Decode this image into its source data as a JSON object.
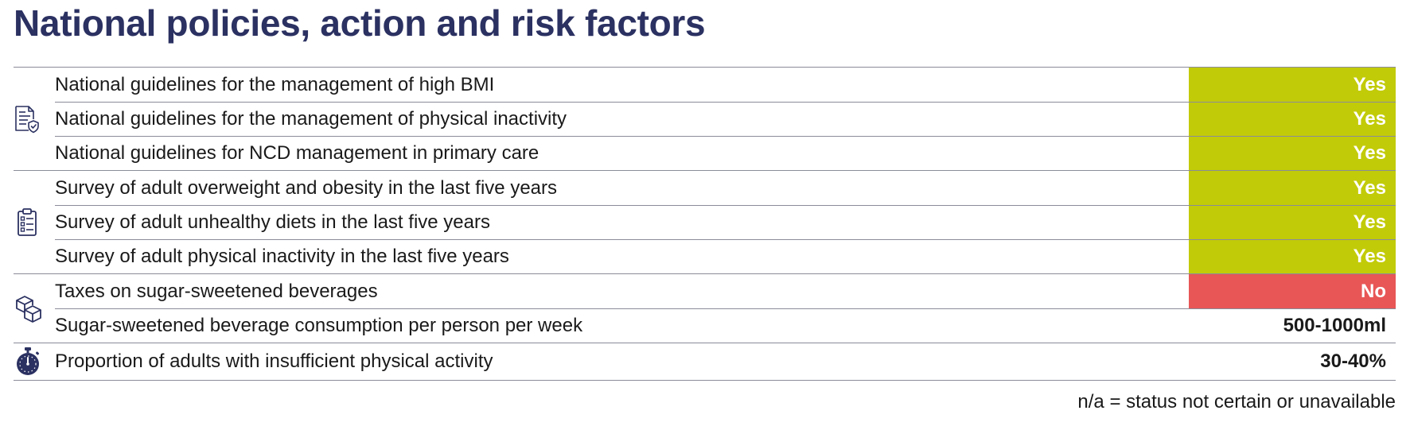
{
  "title": "National policies, action and risk factors",
  "groups": [
    {
      "icon": "guideline-document-icon",
      "rows": [
        {
          "label": "National guidelines for the management of high BMI",
          "value": "Yes",
          "status": "yes"
        },
        {
          "label": "National guidelines for the management of physical inactivity",
          "value": "Yes",
          "status": "yes"
        },
        {
          "label": "National guidelines for NCD management in primary care",
          "value": "Yes",
          "status": "yes"
        }
      ]
    },
    {
      "icon": "survey-clipboard-icon",
      "rows": [
        {
          "label": "Survey of adult overweight and obesity in the last five years",
          "value": "Yes",
          "status": "yes"
        },
        {
          "label": "Survey of adult unhealthy diets in the last five years",
          "value": "Yes",
          "status": "yes"
        },
        {
          "label": "Survey of adult physical inactivity in the last five years",
          "value": "Yes",
          "status": "yes"
        }
      ]
    },
    {
      "icon": "boxes-icon",
      "rows": [
        {
          "label": "Taxes on sugar-sweetened beverages",
          "value": "No",
          "status": "no"
        },
        {
          "label": "Sugar-sweetened beverage consumption per person per week",
          "value": "500-1000ml",
          "status": "plain"
        }
      ]
    },
    {
      "icon": "stopwatch-icon",
      "rows": [
        {
          "label": "Proportion of adults with insufficient physical activity",
          "value": "30-40%",
          "status": "plain"
        }
      ]
    }
  ],
  "footnote": "n/a = status not certain or unavailable",
  "colors": {
    "title": "#2b3161",
    "yes": "#c2cb08",
    "no": "#e85656",
    "rule": "#8a8c99"
  }
}
